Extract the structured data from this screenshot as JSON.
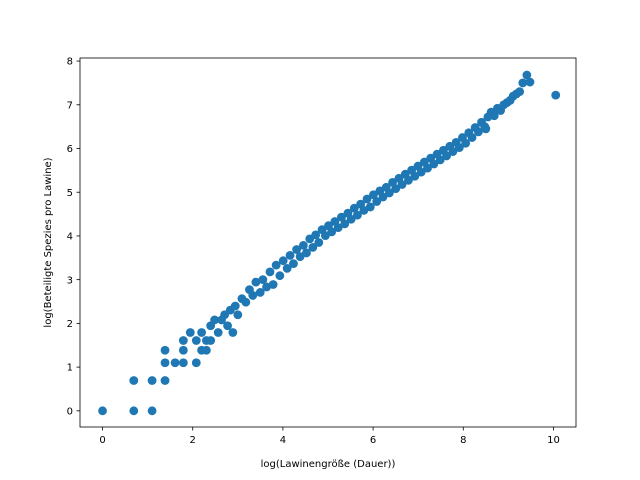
{
  "chart_data": {
    "type": "scatter",
    "title": "",
    "xlabel": "log(Lawinengröße (Dauer))",
    "ylabel": "log(Beteiligte Spezies pro Lawine)",
    "xlim": [
      -0.5,
      10.5
    ],
    "ylim": [
      -0.37,
      8.07
    ],
    "xticks": [
      0,
      2,
      4,
      6,
      8,
      10
    ],
    "yticks": [
      0,
      1,
      2,
      3,
      4,
      5,
      6,
      7,
      8
    ],
    "grid": false,
    "legend": "none",
    "series": [
      {
        "color": "#1f77b4",
        "points": [
          [
            0,
            0
          ],
          [
            0.693,
            0
          ],
          [
            0.693,
            0.693
          ],
          [
            1.099,
            0
          ],
          [
            1.099,
            0.693
          ],
          [
            1.386,
            0.693
          ],
          [
            1.386,
            1.099
          ],
          [
            1.386,
            1.386
          ],
          [
            1.609,
            1.099
          ],
          [
            1.792,
            1.099
          ],
          [
            1.792,
            1.386
          ],
          [
            1.792,
            1.609
          ],
          [
            1.946,
            1.792
          ],
          [
            2.079,
            1.099
          ],
          [
            2.079,
            1.609
          ],
          [
            2.197,
            1.386
          ],
          [
            2.197,
            1.792
          ],
          [
            2.303,
            1.609
          ],
          [
            2.303,
            1.386
          ],
          [
            2.398,
            1.609
          ],
          [
            2.398,
            1.946
          ],
          [
            2.485,
            2.079
          ],
          [
            2.565,
            1.792
          ],
          [
            2.639,
            2.079
          ],
          [
            2.708,
            2.197
          ],
          [
            2.773,
            1.946
          ],
          [
            2.833,
            2.303
          ],
          [
            2.89,
            1.792
          ],
          [
            2.944,
            2.398
          ],
          [
            3.0,
            2.197
          ],
          [
            3.091,
            2.565
          ],
          [
            3.178,
            2.485
          ],
          [
            3.258,
            2.773
          ],
          [
            3.332,
            2.639
          ],
          [
            3.401,
            2.944
          ],
          [
            3.497,
            2.708
          ],
          [
            3.555,
            3.0
          ],
          [
            3.638,
            2.833
          ],
          [
            3.714,
            3.178
          ],
          [
            3.784,
            2.89
          ],
          [
            3.85,
            3.332
          ],
          [
            3.932,
            3.091
          ],
          [
            4.007,
            3.434
          ],
          [
            4.094,
            3.258
          ],
          [
            4.159,
            3.555
          ],
          [
            4.234,
            3.367
          ],
          [
            4.304,
            3.689
          ],
          [
            4.382,
            3.526
          ],
          [
            4.454,
            3.784
          ],
          [
            4.522,
            3.611
          ],
          [
            4.595,
            3.932
          ],
          [
            4.663,
            3.738
          ],
          [
            4.727,
            4.025
          ],
          [
            4.796,
            3.85
          ],
          [
            4.868,
            4.143
          ],
          [
            4.942,
            4.007
          ],
          [
            5.011,
            4.234
          ],
          [
            5.081,
            4.094
          ],
          [
            5.153,
            4.331
          ],
          [
            5.226,
            4.19
          ],
          [
            5.298,
            4.431
          ],
          [
            5.371,
            4.277
          ],
          [
            5.442,
            4.522
          ],
          [
            5.513,
            4.382
          ],
          [
            5.583,
            4.635
          ],
          [
            5.652,
            4.477
          ],
          [
            5.724,
            4.727
          ],
          [
            5.796,
            4.585
          ],
          [
            5.866,
            4.844
          ],
          [
            5.938,
            4.663
          ],
          [
            6.008,
            4.942
          ],
          [
            6.08,
            4.787
          ],
          [
            6.15,
            5.03
          ],
          [
            6.22,
            4.89
          ],
          [
            6.291,
            5.112
          ],
          [
            6.361,
            4.984
          ],
          [
            6.432,
            5.226
          ],
          [
            6.502,
            5.081
          ],
          [
            6.573,
            5.318
          ],
          [
            6.643,
            5.176
          ],
          [
            6.714,
            5.412
          ],
          [
            6.784,
            5.273
          ],
          [
            6.855,
            5.505
          ],
          [
            6.925,
            5.366
          ],
          [
            6.996,
            5.598
          ],
          [
            7.066,
            5.46
          ],
          [
            7.137,
            5.69
          ],
          [
            7.207,
            5.552
          ],
          [
            7.278,
            5.78
          ],
          [
            7.348,
            5.645
          ],
          [
            7.419,
            5.87
          ],
          [
            7.489,
            5.739
          ],
          [
            7.56,
            5.96
          ],
          [
            7.63,
            5.83
          ],
          [
            7.7,
            6.05
          ],
          [
            7.771,
            5.93
          ],
          [
            7.841,
            6.14
          ],
          [
            7.912,
            6.02
          ],
          [
            7.982,
            6.25
          ],
          [
            8.053,
            6.12
          ],
          [
            8.123,
            6.36
          ],
          [
            8.194,
            6.25
          ],
          [
            8.264,
            6.48
          ],
          [
            8.335,
            6.38
          ],
          [
            8.405,
            6.6
          ],
          [
            8.476,
            6.5
          ],
          [
            8.546,
            6.72
          ],
          [
            8.5,
            6.45
          ],
          [
            8.617,
            6.83
          ],
          [
            8.687,
            6.75
          ],
          [
            8.758,
            6.92
          ],
          [
            8.828,
            6.87
          ],
          [
            8.899,
            7.0
          ],
          [
            8.969,
            7.05
          ],
          [
            9.04,
            7.1
          ],
          [
            9.11,
            7.2
          ],
          [
            9.18,
            7.25
          ],
          [
            9.25,
            7.3
          ],
          [
            9.32,
            7.5
          ],
          [
            9.41,
            7.68
          ],
          [
            9.48,
            7.52
          ],
          [
            10.05,
            7.22
          ]
        ]
      }
    ]
  }
}
